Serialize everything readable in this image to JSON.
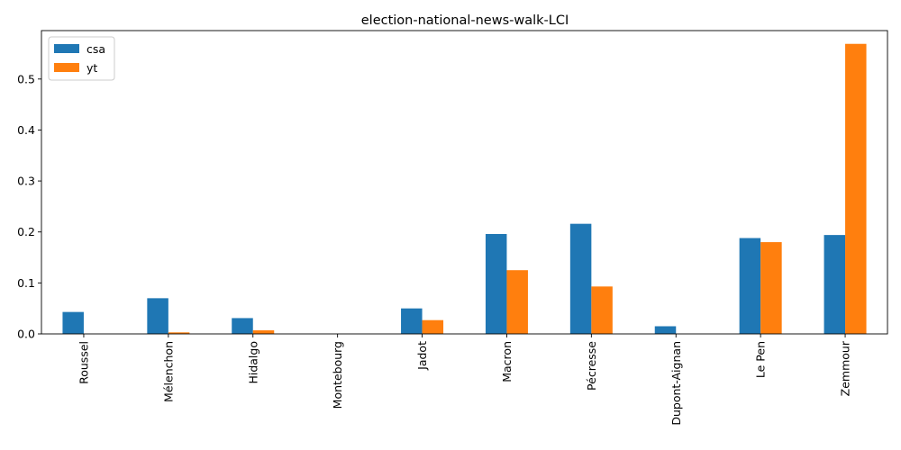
{
  "chart_data": {
    "type": "bar",
    "title": "election-national-news-walk-LCI",
    "xlabel": "",
    "ylabel": "",
    "categories": [
      "Roussel",
      "Mélenchon",
      "Hidalgo",
      "Montebourg",
      "Jadot",
      "Macron",
      "Pécresse",
      "Dupont-Aignan",
      "Le Pen",
      "Zemmour"
    ],
    "series": [
      {
        "name": "csa",
        "color": "#1f77b4",
        "values": [
          0.043,
          0.07,
          0.031,
          0.0,
          0.05,
          0.196,
          0.216,
          0.015,
          0.188,
          0.194
        ]
      },
      {
        "name": "yt",
        "color": "#ff7f0e",
        "values": [
          0.0,
          0.003,
          0.007,
          0.0,
          0.027,
          0.125,
          0.093,
          0.0,
          0.18,
          0.569
        ]
      }
    ],
    "ylim": [
      0,
      0.595
    ],
    "yticks": [
      "0.0",
      "0.1",
      "0.2",
      "0.3",
      "0.4",
      "0.5"
    ],
    "legend_position": "top-left",
    "grid": false
  }
}
